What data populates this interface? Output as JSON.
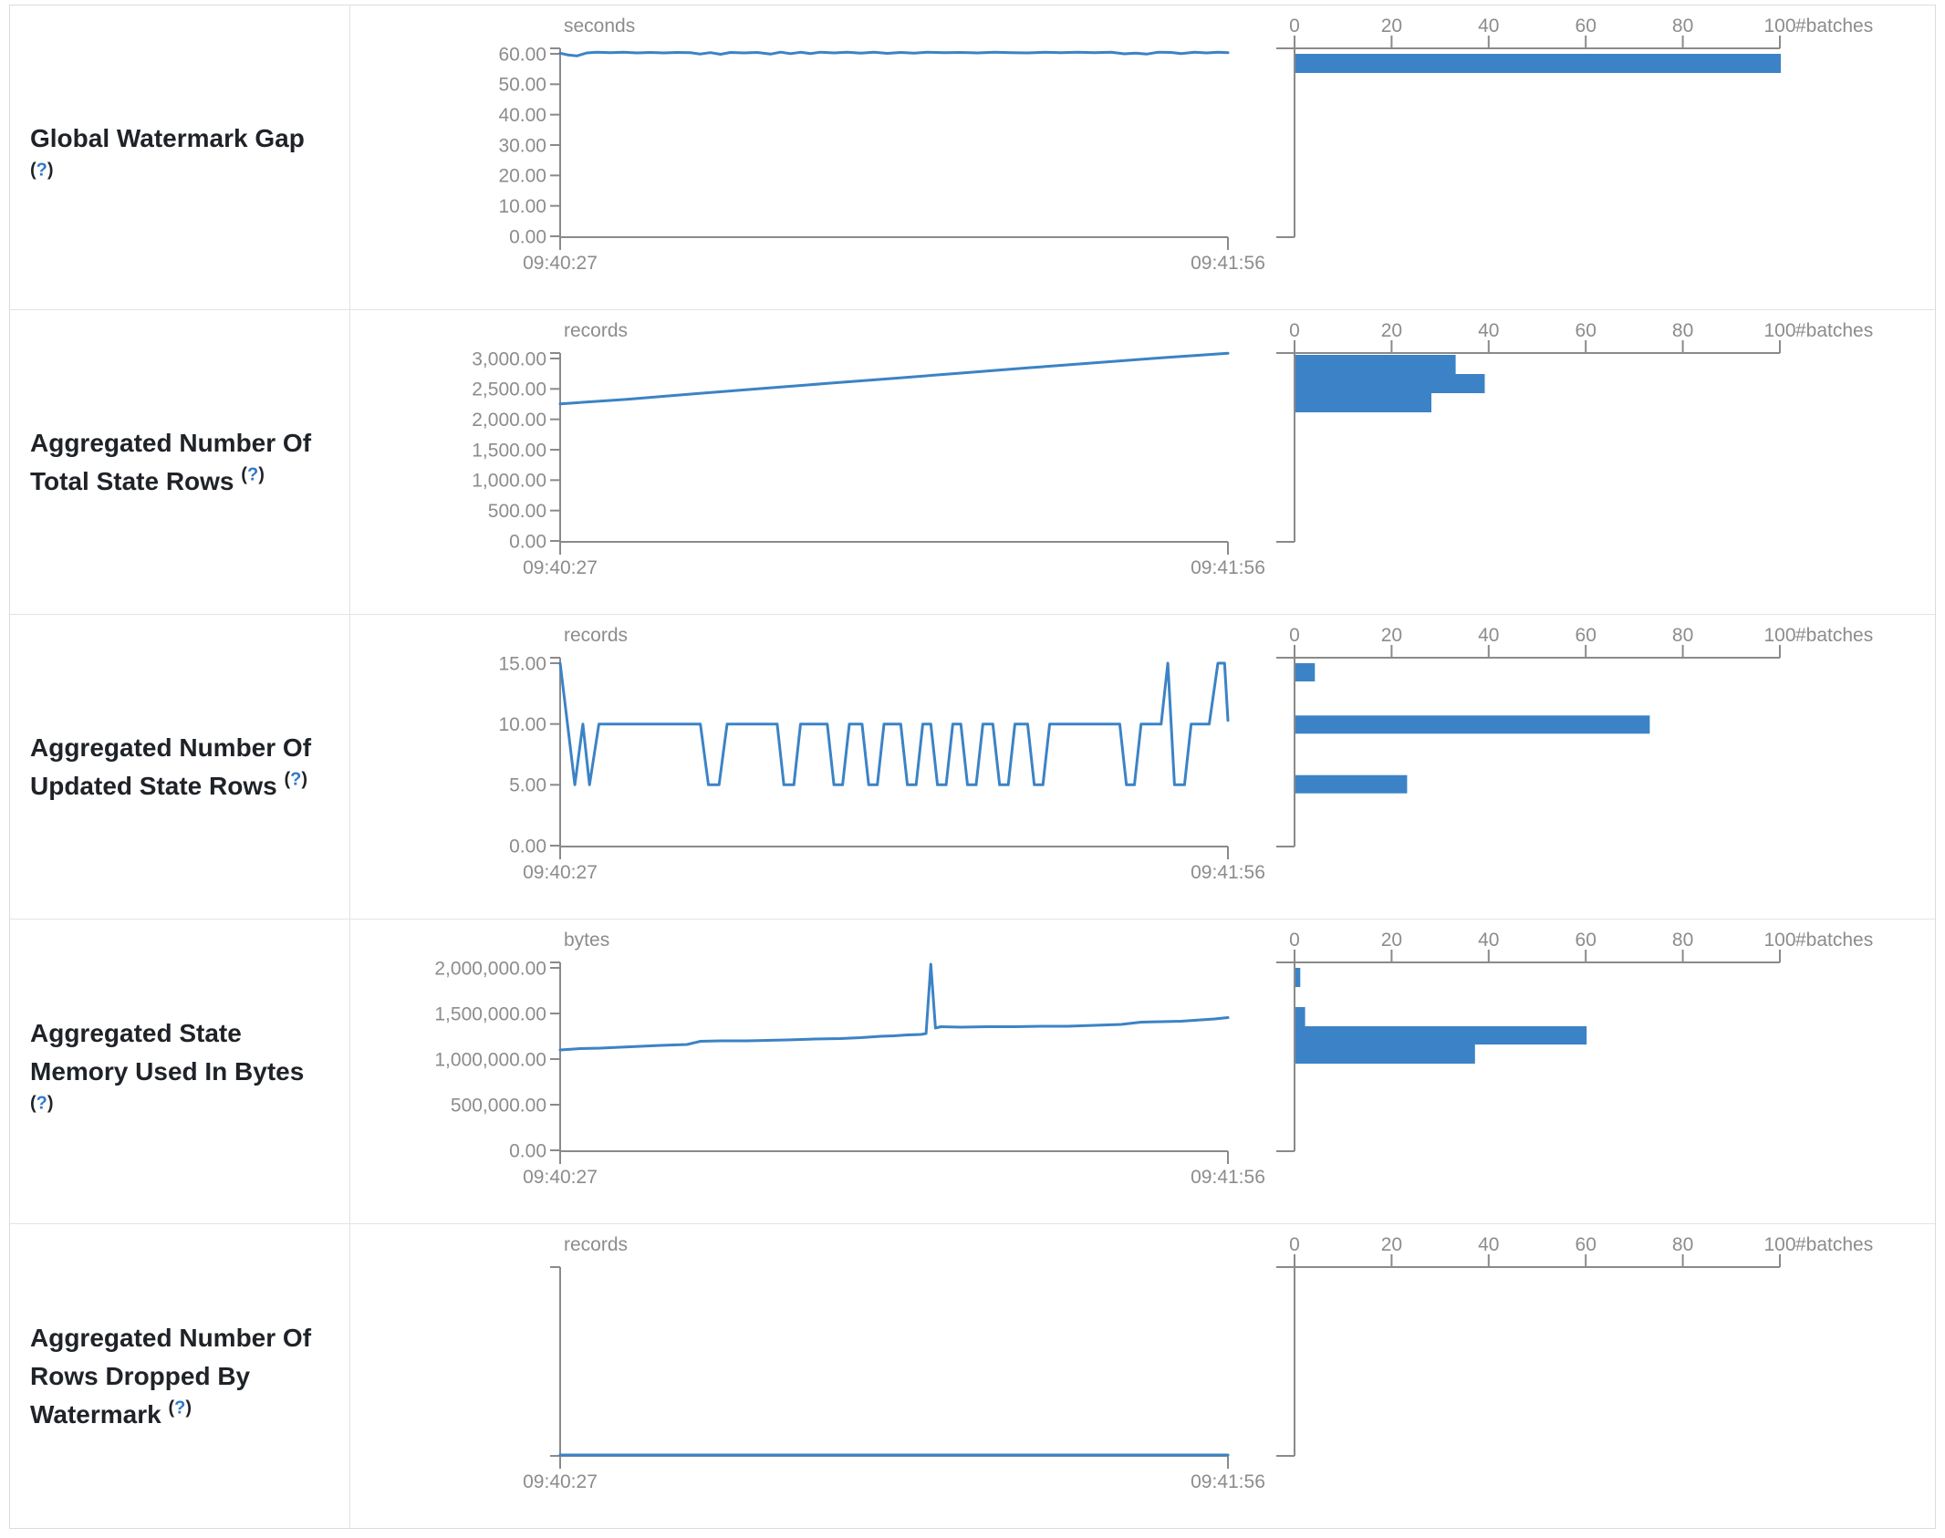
{
  "accent_color": "#3b83c6",
  "axis_color": "#8a8a8a",
  "tick_label_color": "#8c8c8c",
  "border_color": "#e3e3e3",
  "label_text_color": "#1f2328",
  "help_color": "#3179c8",
  "common": {
    "paren_open": "(",
    "question_mark": "?",
    "paren_close": ")"
  },
  "chart_data": [
    {
      "title": "Global Watermark Gap",
      "line": {
        "type": "line",
        "unit": "seconds",
        "ymax": 60,
        "y_ticks": [
          "60.00",
          "50.00",
          "40.00",
          "30.00",
          "20.00",
          "10.00",
          "0.00"
        ],
        "x_ticks": [
          "09:40:27",
          "09:41:56"
        ],
        "points": [
          [
            0,
            60.2
          ],
          [
            0.012,
            59.6
          ],
          [
            0.025,
            59.3
          ],
          [
            0.04,
            60.3
          ],
          [
            0.055,
            60.5
          ],
          [
            0.075,
            60.4
          ],
          [
            0.095,
            60.5
          ],
          [
            0.115,
            60.3
          ],
          [
            0.135,
            60.45
          ],
          [
            0.155,
            60.3
          ],
          [
            0.175,
            60.45
          ],
          [
            0.195,
            60.35
          ],
          [
            0.21,
            59.95
          ],
          [
            0.225,
            60.4
          ],
          [
            0.24,
            59.85
          ],
          [
            0.255,
            60.45
          ],
          [
            0.275,
            60.3
          ],
          [
            0.295,
            60.45
          ],
          [
            0.315,
            59.9
          ],
          [
            0.33,
            60.55
          ],
          [
            0.345,
            60.05
          ],
          [
            0.36,
            60.5
          ],
          [
            0.375,
            60.1
          ],
          [
            0.39,
            60.55
          ],
          [
            0.41,
            60.3
          ],
          [
            0.43,
            60.5
          ],
          [
            0.45,
            60.25
          ],
          [
            0.47,
            60.55
          ],
          [
            0.49,
            60.15
          ],
          [
            0.51,
            60.45
          ],
          [
            0.53,
            60.25
          ],
          [
            0.55,
            60.5
          ],
          [
            0.575,
            60.35
          ],
          [
            0.6,
            60.45
          ],
          [
            0.625,
            60.3
          ],
          [
            0.65,
            60.5
          ],
          [
            0.675,
            60.4
          ],
          [
            0.7,
            60.3
          ],
          [
            0.725,
            60.5
          ],
          [
            0.75,
            60.4
          ],
          [
            0.775,
            60.5
          ],
          [
            0.8,
            60.35
          ],
          [
            0.825,
            60.5
          ],
          [
            0.845,
            60.0
          ],
          [
            0.862,
            60.25
          ],
          [
            0.878,
            59.9
          ],
          [
            0.895,
            60.5
          ],
          [
            0.915,
            60.45
          ],
          [
            0.93,
            60.1
          ],
          [
            0.95,
            60.5
          ],
          [
            0.968,
            60.3
          ],
          [
            0.985,
            60.55
          ],
          [
            1,
            60.4
          ]
        ]
      },
      "histogram": {
        "type": "bar",
        "axis_label": "#batches",
        "ticks": [
          0,
          20,
          40,
          60,
          80,
          100
        ],
        "xmax": 100,
        "bars": [
          {
            "v_hi": 60,
            "v_lo": 53.7,
            "count": 100
          }
        ]
      }
    },
    {
      "title": "Aggregated Number Of Total State Rows",
      "line": {
        "type": "line",
        "unit": "records",
        "ymax": 3000,
        "y_ticks": [
          "3,000.00",
          "2,500.00",
          "2,000.00",
          "1,500.00",
          "1,000.00",
          "500.00",
          "0.00"
        ],
        "x_ticks": [
          "09:40:27",
          "09:41:56"
        ],
        "points": [
          [
            0,
            2255
          ],
          [
            0.1,
            2330
          ],
          [
            0.2,
            2420
          ],
          [
            0.3,
            2505
          ],
          [
            0.4,
            2590
          ],
          [
            0.5,
            2675
          ],
          [
            0.6,
            2760
          ],
          [
            0.7,
            2845
          ],
          [
            0.8,
            2930
          ],
          [
            0.9,
            3010
          ],
          [
            1,
            3085
          ]
        ]
      },
      "histogram": {
        "type": "bar",
        "axis_label": "#batches",
        "ticks": [
          0,
          20,
          40,
          60,
          80,
          100
        ],
        "xmax": 100,
        "bars": [
          {
            "v_hi": 3060,
            "v_lo": 2745,
            "count": 33
          },
          {
            "v_hi": 2745,
            "v_lo": 2430,
            "count": 39
          },
          {
            "v_hi": 2430,
            "v_lo": 2115,
            "count": 28
          }
        ]
      }
    },
    {
      "title": "Aggregated Number Of Updated State Rows",
      "line": {
        "type": "line",
        "unit": "records",
        "ymax": 15,
        "y_ticks": [
          "15.00",
          "10.00",
          "5.00",
          "0.00"
        ],
        "x_ticks": [
          "09:40:27",
          "09:41:56"
        ],
        "points": [
          [
            0,
            15
          ],
          [
            0.022,
            5
          ],
          [
            0.034,
            10
          ],
          [
            0.044,
            5
          ],
          [
            0.058,
            10
          ],
          [
            0.21,
            10
          ],
          [
            0.222,
            5
          ],
          [
            0.238,
            5
          ],
          [
            0.25,
            10
          ],
          [
            0.325,
            10
          ],
          [
            0.335,
            5
          ],
          [
            0.35,
            5
          ],
          [
            0.36,
            10
          ],
          [
            0.4,
            10
          ],
          [
            0.41,
            5
          ],
          [
            0.423,
            5
          ],
          [
            0.433,
            10
          ],
          [
            0.452,
            10
          ],
          [
            0.462,
            5
          ],
          [
            0.475,
            5
          ],
          [
            0.485,
            10
          ],
          [
            0.51,
            10
          ],
          [
            0.52,
            5
          ],
          [
            0.533,
            5
          ],
          [
            0.543,
            10
          ],
          [
            0.555,
            10
          ],
          [
            0.565,
            5
          ],
          [
            0.578,
            5
          ],
          [
            0.588,
            10
          ],
          [
            0.6,
            10
          ],
          [
            0.61,
            5
          ],
          [
            0.623,
            5
          ],
          [
            0.633,
            10
          ],
          [
            0.648,
            10
          ],
          [
            0.658,
            5
          ],
          [
            0.671,
            5
          ],
          [
            0.681,
            10
          ],
          [
            0.7,
            10
          ],
          [
            0.71,
            5
          ],
          [
            0.723,
            5
          ],
          [
            0.733,
            10
          ],
          [
            0.838,
            10
          ],
          [
            0.848,
            5
          ],
          [
            0.86,
            5
          ],
          [
            0.87,
            10
          ],
          [
            0.9,
            10
          ],
          [
            0.91,
            15
          ],
          [
            0.92,
            5
          ],
          [
            0.935,
            5
          ],
          [
            0.945,
            10
          ],
          [
            0.972,
            10
          ],
          [
            0.985,
            15
          ],
          [
            0.995,
            15
          ],
          [
            1,
            10.3
          ]
        ]
      },
      "histogram": {
        "type": "bar",
        "axis_label": "#batches",
        "ticks": [
          0,
          20,
          40,
          60,
          80,
          100
        ],
        "xmax": 100,
        "bars": [
          {
            "v_hi": 15,
            "v_lo": 13.5,
            "count": 4
          },
          {
            "v_hi": 10.7,
            "v_lo": 9.2,
            "count": 73
          },
          {
            "v_hi": 5.8,
            "v_lo": 4.3,
            "count": 23
          }
        ]
      }
    },
    {
      "title": "Aggregated State Memory Used In Bytes",
      "line": {
        "type": "line",
        "unit": "bytes",
        "ymax": 2000000,
        "y_ticks": [
          "2,000,000.00",
          "1,500,000.00",
          "1,000,000.00",
          "500,000.00",
          "0.00"
        ],
        "x_ticks": [
          "09:40:27",
          "09:41:56"
        ],
        "points": [
          [
            0,
            1100000
          ],
          [
            0.03,
            1115000
          ],
          [
            0.06,
            1120000
          ],
          [
            0.09,
            1130000
          ],
          [
            0.12,
            1140000
          ],
          [
            0.15,
            1150000
          ],
          [
            0.17,
            1155000
          ],
          [
            0.19,
            1160000
          ],
          [
            0.21,
            1195000
          ],
          [
            0.24,
            1200000
          ],
          [
            0.28,
            1200000
          ],
          [
            0.31,
            1205000
          ],
          [
            0.34,
            1210000
          ],
          [
            0.38,
            1220000
          ],
          [
            0.42,
            1225000
          ],
          [
            0.45,
            1235000
          ],
          [
            0.48,
            1250000
          ],
          [
            0.5,
            1255000
          ],
          [
            0.52,
            1265000
          ],
          [
            0.54,
            1270000
          ],
          [
            0.548,
            1280000
          ],
          [
            0.555,
            2040000
          ],
          [
            0.562,
            1340000
          ],
          [
            0.57,
            1355000
          ],
          [
            0.6,
            1350000
          ],
          [
            0.64,
            1355000
          ],
          [
            0.68,
            1355000
          ],
          [
            0.72,
            1360000
          ],
          [
            0.76,
            1360000
          ],
          [
            0.8,
            1370000
          ],
          [
            0.84,
            1380000
          ],
          [
            0.87,
            1405000
          ],
          [
            0.9,
            1410000
          ],
          [
            0.93,
            1415000
          ],
          [
            0.96,
            1430000
          ],
          [
            0.98,
            1440000
          ],
          [
            1,
            1455000
          ]
        ]
      },
      "histogram": {
        "type": "bar",
        "axis_label": "#batches",
        "ticks": [
          0,
          20,
          40,
          60,
          80,
          100
        ],
        "xmax": 100,
        "bars": [
          {
            "v_hi": 2000000,
            "v_lo": 1790000,
            "count": 1
          },
          {
            "v_hi": 1570000,
            "v_lo": 1360000,
            "count": 2
          },
          {
            "v_hi": 1360000,
            "v_lo": 1160000,
            "count": 60
          },
          {
            "v_hi": 1160000,
            "v_lo": 950000,
            "count": 37
          }
        ]
      }
    },
    {
      "title": "Aggregated Number Of Rows Dropped By Watermark",
      "line": {
        "type": "line",
        "unit": "records",
        "ymax": 1,
        "y_ticks": [],
        "x_ticks": [
          "09:40:27",
          "09:41:56"
        ],
        "points": [
          [
            0,
            0
          ],
          [
            1,
            0
          ]
        ]
      },
      "histogram": {
        "type": "bar",
        "axis_label": "#batches",
        "ticks": [
          0,
          20,
          40,
          60,
          80,
          100
        ],
        "xmax": 100,
        "bars": []
      }
    }
  ]
}
